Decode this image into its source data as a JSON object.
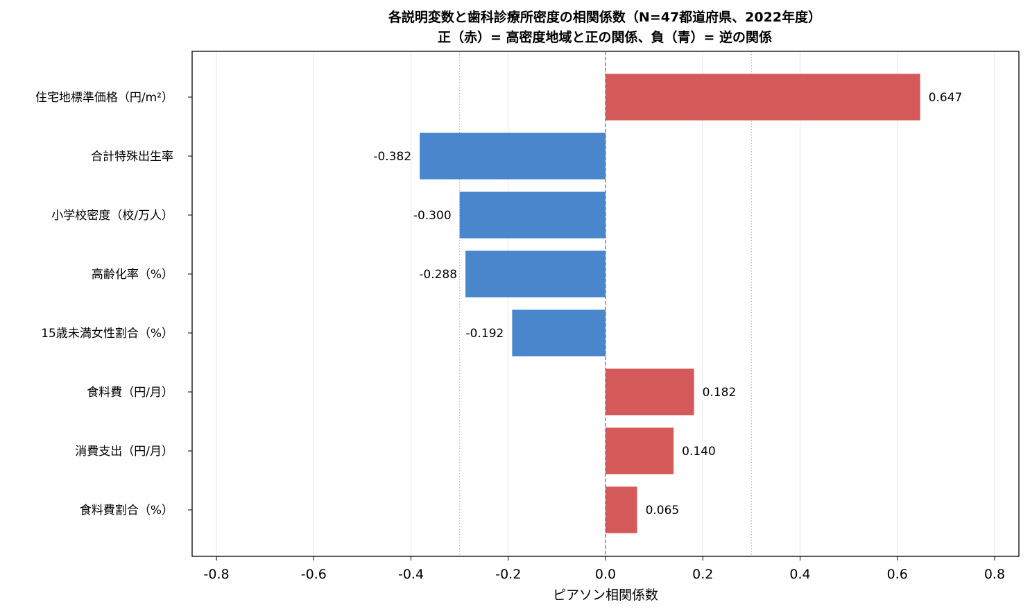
{
  "chart_data": {
    "type": "bar",
    "orientation": "horizontal",
    "title": "各説明変数と歯科診療所密度の相関係数（N=47都道府県、2022年度）",
    "subtitle": "正（赤）= 高密度地域と正の関係、負（青）= 逆の関係",
    "xlabel": "ピアソン相関係数",
    "ylabel": "",
    "xlim": [
      -0.85,
      0.85
    ],
    "xticks": [
      -0.8,
      -0.6,
      -0.4,
      -0.2,
      0.0,
      0.2,
      0.4,
      0.6,
      0.8
    ],
    "xtick_labels": [
      "-0.8",
      "-0.6",
      "-0.4",
      "-0.2",
      "0.0",
      "0.2",
      "0.4",
      "0.6",
      "0.8"
    ],
    "reference_lines": [
      -0.3,
      0.3
    ],
    "zero_line": true,
    "grid": "x",
    "categories": [
      "住宅地標準価格（円/m²）",
      "合計特殊出生率",
      "小学校密度（校/万人）",
      "高齢化率（%）",
      "15歳未満女性割合（%）",
      "食料費（円/月）",
      "消費支出（円/月）",
      "食料費割合（%）"
    ],
    "values": [
      0.647,
      -0.382,
      -0.3,
      -0.288,
      -0.192,
      0.182,
      0.14,
      0.065
    ],
    "value_labels": [
      "0.647",
      "-0.382",
      "-0.300",
      "-0.288",
      "-0.192",
      "0.182",
      "0.140",
      "0.065"
    ],
    "colors": {
      "positive": "#d45a5a",
      "negative": "#4a86cc",
      "zero_line": "#808080",
      "grid": "#e6e6e6",
      "ref_line": "#b0b0b0"
    }
  }
}
